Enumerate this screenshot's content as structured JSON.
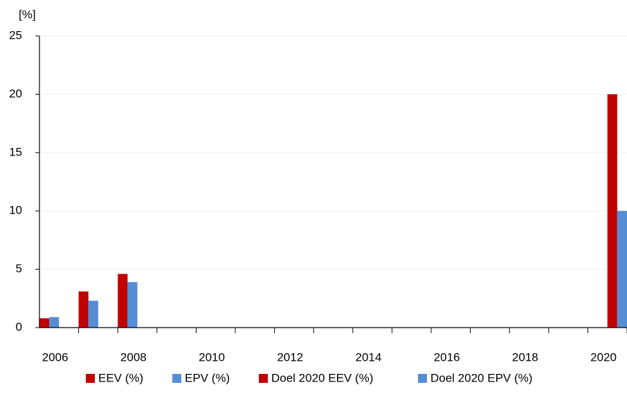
{
  "chart_data": {
    "type": "bar",
    "y_label": "[%]",
    "categories": [
      "2006",
      null,
      "2008",
      null,
      "2010",
      null,
      "2012",
      null,
      "2014",
      null,
      "2016",
      null,
      "2018",
      null,
      "2020"
    ],
    "series": [
      {
        "name": "EEV (%)",
        "color": "#c00000",
        "values": [
          0.8,
          3.1,
          4.6,
          null,
          null,
          null,
          null,
          null,
          null,
          null,
          null,
          null,
          null,
          null,
          null
        ]
      },
      {
        "name": "EPV (%)",
        "color": "#558ed5",
        "values": [
          0.9,
          2.3,
          3.9,
          null,
          null,
          null,
          null,
          null,
          null,
          null,
          null,
          null,
          null,
          null,
          null
        ]
      },
      {
        "name": "Doel 2020 EEV (%)",
        "color": "#c00000",
        "values": [
          null,
          null,
          null,
          null,
          null,
          null,
          null,
          null,
          null,
          null,
          null,
          null,
          null,
          null,
          20
        ]
      },
      {
        "name": "Doel 2020 EPV (%)",
        "color": "#558ed5",
        "values": [
          null,
          null,
          null,
          null,
          null,
          null,
          null,
          null,
          null,
          null,
          null,
          null,
          null,
          null,
          10
        ]
      }
    ],
    "ylim": [
      0,
      25
    ],
    "yticks": [
      0,
      5,
      10,
      15,
      20,
      25
    ],
    "grid": true,
    "legend": "bottom"
  }
}
